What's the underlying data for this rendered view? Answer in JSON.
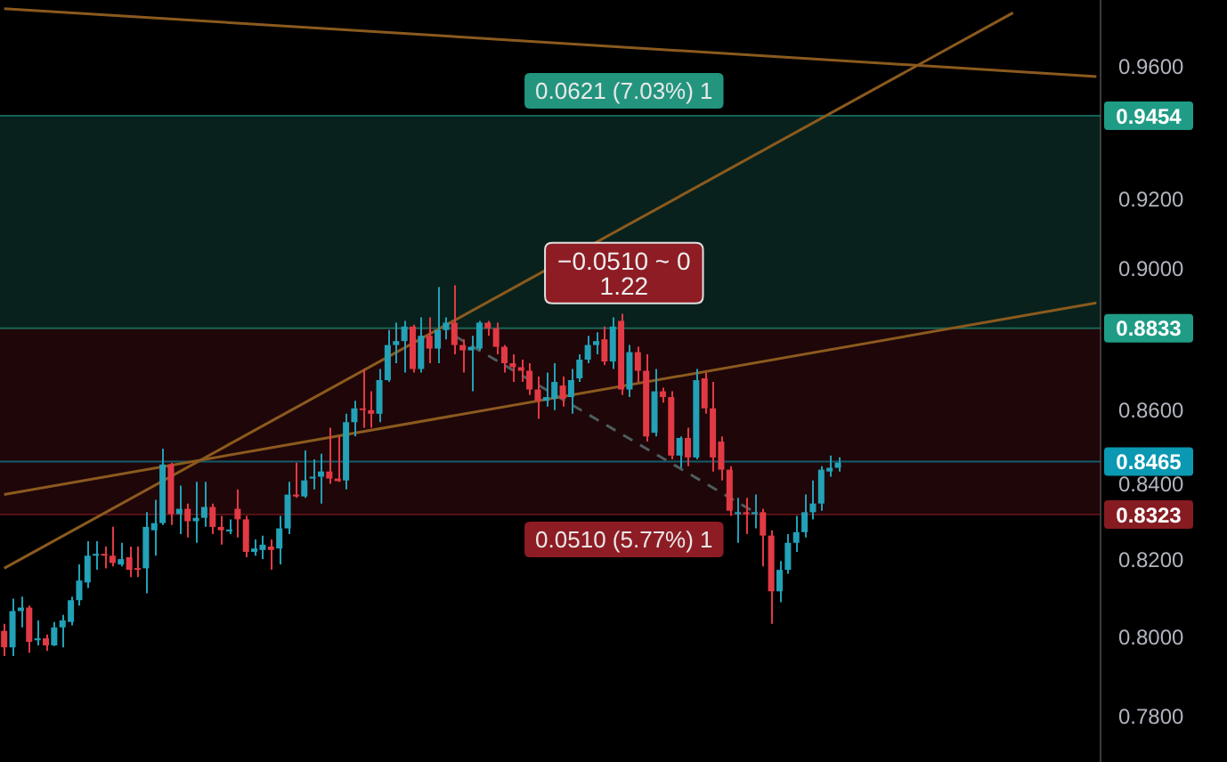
{
  "chart_data": {
    "type": "candlestick",
    "log": true,
    "tick_labels": "y",
    "ylim": [
      0.769,
      0.981
    ],
    "yticks": [
      {
        "value": 0.78,
        "label": "0.7800"
      },
      {
        "value": 0.8,
        "label": "0.8000"
      },
      {
        "value": 0.82,
        "label": "0.8200"
      },
      {
        "value": 0.84,
        "label": "0.8400"
      },
      {
        "value": 0.86,
        "label": "0.8600"
      },
      {
        "value": 0.9,
        "label": "0.9000"
      },
      {
        "value": 0.92,
        "label": "0.9200"
      },
      {
        "value": 0.96,
        "label": "0.9600"
      }
    ],
    "categories": [
      null,
      null,
      null,
      null,
      null,
      null,
      null,
      null,
      null,
      null,
      null,
      null,
      null,
      null,
      null,
      null,
      null,
      null,
      null,
      null,
      null,
      null,
      null,
      null,
      null,
      null,
      null,
      null,
      null,
      null,
      null,
      null,
      null,
      null,
      null,
      null,
      null,
      null,
      null,
      null,
      null,
      null,
      null,
      null,
      null,
      null,
      null,
      null,
      null,
      null,
      null,
      null,
      null,
      null,
      null,
      null,
      null,
      null,
      null,
      null,
      null,
      null,
      null,
      null,
      null,
      null,
      null,
      null,
      null,
      null,
      null,
      null,
      null,
      null,
      null,
      null,
      null,
      null,
      null,
      null,
      null,
      null,
      null,
      null,
      null,
      null,
      null,
      null,
      null,
      null,
      null,
      null,
      null,
      null,
      null,
      null,
      null,
      null,
      null,
      null,
      null,
      null,
      null,
      null,
      null,
      null,
      null,
      null,
      null,
      null,
      null,
      null,
      null,
      null,
      null,
      null,
      null,
      null,
      null,
      null,
      null,
      null,
      null,
      null,
      null,
      null,
      null,
      null,
      null,
      null,
      null,
      null
    ],
    "ohlc": [
      [
        0.8019,
        0.8037,
        0.7955,
        0.7977
      ],
      [
        0.7977,
        0.8102,
        0.7955,
        0.807
      ],
      [
        0.807,
        0.8107,
        0.8028,
        0.8079
      ],
      [
        0.8079,
        0.8084,
        0.7963,
        0.7991
      ],
      [
        0.7995,
        0.8046,
        0.7982,
        0.8
      ],
      [
        0.8,
        0.801,
        0.7968,
        0.7982
      ],
      [
        0.7982,
        0.8042,
        0.798,
        0.8028
      ],
      [
        0.8028,
        0.806,
        0.7977,
        0.8046
      ],
      [
        0.8042,
        0.8107,
        0.8033,
        0.8098
      ],
      [
        0.8098,
        0.8191,
        0.8084,
        0.8149
      ],
      [
        0.8144,
        0.8252,
        0.813,
        0.8214
      ],
      [
        0.8214,
        0.8252,
        0.8177,
        0.8219
      ],
      [
        0.8219,
        0.8238,
        0.8181,
        0.8214
      ],
      [
        0.8214,
        0.829,
        0.8186,
        0.8195
      ],
      [
        0.8191,
        0.8248,
        0.8186,
        0.8205
      ],
      [
        0.821,
        0.8238,
        0.8158,
        0.8177
      ],
      [
        0.8181,
        0.8238,
        0.8158,
        0.8177
      ],
      [
        0.8181,
        0.8329,
        0.8116,
        0.829
      ],
      [
        0.8281,
        0.8362,
        0.8214,
        0.83
      ],
      [
        0.83,
        0.85,
        0.8295,
        0.8457
      ],
      [
        0.8457,
        0.8462,
        0.8295,
        0.8324
      ],
      [
        0.8324,
        0.84,
        0.8271,
        0.8338
      ],
      [
        0.8338,
        0.8352,
        0.8262,
        0.8305
      ],
      [
        0.8305,
        0.841,
        0.8248,
        0.8314
      ],
      [
        0.8314,
        0.841,
        0.829,
        0.8343
      ],
      [
        0.8343,
        0.8352,
        0.8271,
        0.829
      ],
      [
        0.829,
        0.8319,
        0.8243,
        0.8281
      ],
      [
        0.8278,
        0.831,
        0.8271,
        0.8283
      ],
      [
        0.8338,
        0.839,
        0.8262,
        0.831
      ],
      [
        0.831,
        0.8319,
        0.821,
        0.8224
      ],
      [
        0.8224,
        0.8257,
        0.8214,
        0.8233
      ],
      [
        0.8229,
        0.8267,
        0.8205,
        0.8243
      ],
      [
        0.8238,
        0.8257,
        0.8177,
        0.8229
      ],
      [
        0.8233,
        0.8319,
        0.8191,
        0.8286
      ],
      [
        0.8286,
        0.841,
        0.8271,
        0.8376
      ],
      [
        0.8376,
        0.8462,
        0.8367,
        0.8371
      ],
      [
        0.8371,
        0.8495,
        0.8367,
        0.8414
      ],
      [
        0.8419,
        0.8471,
        0.839,
        0.8424
      ],
      [
        0.8424,
        0.8486,
        0.8352,
        0.8438
      ],
      [
        0.8438,
        0.8557,
        0.8405,
        0.8419
      ],
      [
        0.8419,
        0.8533,
        0.841,
        0.8412
      ],
      [
        0.8414,
        0.8595,
        0.839,
        0.8572
      ],
      [
        0.8572,
        0.8631,
        0.8533,
        0.861
      ],
      [
        0.861,
        0.8719,
        0.8557,
        0.8605
      ],
      [
        0.8605,
        0.8657,
        0.8557,
        0.8595
      ],
      [
        0.8595,
        0.8719,
        0.8572,
        0.8688
      ],
      [
        0.8688,
        0.8828,
        0.8683,
        0.8786
      ],
      [
        0.8786,
        0.8849,
        0.8735,
        0.8797
      ],
      [
        0.8797,
        0.8854,
        0.8709,
        0.8838
      ],
      [
        0.8838,
        0.8843,
        0.8709,
        0.8719
      ],
      [
        0.8719,
        0.8864,
        0.8709,
        0.8812
      ],
      [
        0.8812,
        0.8864,
        0.8735,
        0.8776
      ],
      [
        0.8776,
        0.895,
        0.8735,
        0.8828
      ],
      [
        0.8828,
        0.8864,
        0.8802,
        0.8849
      ],
      [
        0.8849,
        0.8955,
        0.876,
        0.8786
      ],
      [
        0.8786,
        0.8802,
        0.8709,
        0.8771
      ],
      [
        0.8771,
        0.8812,
        0.8657,
        0.8781
      ],
      [
        0.8776,
        0.8854,
        0.8771,
        0.8849
      ],
      [
        0.8849,
        0.8854,
        0.8812,
        0.8833
      ],
      [
        0.8833,
        0.8849,
        0.876,
        0.8781
      ],
      [
        0.8781,
        0.8786,
        0.8709,
        0.8735
      ],
      [
        0.8735,
        0.876,
        0.8683,
        0.8724
      ],
      [
        0.8724,
        0.8745,
        0.8683,
        0.8714
      ],
      [
        0.8714,
        0.8735,
        0.8647,
        0.8662
      ],
      [
        0.8662,
        0.8698,
        0.8581,
        0.8631
      ],
      [
        0.8631,
        0.8709,
        0.8615,
        0.8641
      ],
      [
        0.8636,
        0.8735,
        0.8605,
        0.8683
      ],
      [
        0.8673,
        0.8698,
        0.8615,
        0.8636
      ],
      [
        0.8641,
        0.8719,
        0.8595,
        0.8688
      ],
      [
        0.8693,
        0.876,
        0.8683,
        0.8745
      ],
      [
        0.8745,
        0.8812,
        0.8735,
        0.8786
      ],
      [
        0.8786,
        0.8822,
        0.876,
        0.8797
      ],
      [
        0.8802,
        0.8838,
        0.873,
        0.874
      ],
      [
        0.874,
        0.8864,
        0.8719,
        0.8838
      ],
      [
        0.8854,
        0.8874,
        0.8647,
        0.8662
      ],
      [
        0.8662,
        0.8786,
        0.8641,
        0.8766
      ],
      [
        0.8766,
        0.8781,
        0.8683,
        0.8714
      ],
      [
        0.8714,
        0.876,
        0.8519,
        0.8533
      ],
      [
        0.8543,
        0.8719,
        0.8533,
        0.8657
      ],
      [
        0.8657,
        0.8667,
        0.8626,
        0.8641
      ],
      [
        0.8641,
        0.8657,
        0.8471,
        0.8481
      ],
      [
        0.8481,
        0.8533,
        0.8448,
        0.8529
      ],
      [
        0.8529,
        0.8557,
        0.8452,
        0.8476
      ],
      [
        0.8476,
        0.8719,
        0.8471,
        0.8688
      ],
      [
        0.8693,
        0.8709,
        0.8595,
        0.861
      ],
      [
        0.861,
        0.8683,
        0.8438,
        0.8476
      ],
      [
        0.8519,
        0.8533,
        0.8414,
        0.8443
      ],
      [
        0.8443,
        0.8452,
        0.8319,
        0.8333
      ],
      [
        0.8324,
        0.8367,
        0.8248,
        0.8329
      ],
      [
        0.8329,
        0.8367,
        0.8271,
        0.8324
      ],
      [
        0.8324,
        0.8376,
        0.8286,
        0.8329
      ],
      [
        0.8329,
        0.8338,
        0.8186,
        0.8267
      ],
      [
        0.8267,
        0.8281,
        0.8037,
        0.8121
      ],
      [
        0.8121,
        0.82,
        0.8093,
        0.8177
      ],
      [
        0.8177,
        0.8271,
        0.8167,
        0.8248
      ],
      [
        0.8248,
        0.8319,
        0.8224,
        0.8276
      ],
      [
        0.8276,
        0.8376,
        0.8262,
        0.8329
      ],
      [
        0.8329,
        0.8414,
        0.831,
        0.8352
      ],
      [
        0.8352,
        0.8452,
        0.8333,
        0.8443
      ],
      [
        0.8438,
        0.8481,
        0.8424,
        0.8448
      ],
      [
        0.8448,
        0.8476,
        0.8438,
        0.8462
      ],
      null,
      null,
      null,
      null,
      null,
      null,
      null,
      null,
      null,
      null,
      null,
      null,
      null,
      null,
      null,
      null,
      null,
      null,
      null,
      null,
      null,
      null,
      null,
      null,
      null,
      null,
      null,
      null,
      null,
      null,
      null
    ],
    "colors": [
      "#e23a45",
      "#22a1b7",
      "#22a1b7",
      "#e23a45",
      "#22a1b7",
      "#e23a45",
      "#22a1b7",
      "#22a1b7",
      "#22a1b7",
      "#22a1b7",
      "#22a1b7",
      "#22a1b7",
      "#e23a45",
      "#e23a45",
      "#22a1b7",
      "#e23a45",
      "#e23a45",
      "#22a1b7",
      "#22a1b7",
      "#22a1b7",
      "#e23a45",
      "#22a1b7",
      "#e23a45",
      "#22a1b7",
      "#22a1b7",
      "#e23a45",
      "#e23a45",
      "#22a1b7",
      "#e23a45",
      "#e23a45",
      "#22a1b7",
      "#22a1b7",
      "#e23a45",
      "#22a1b7",
      "#22a1b7",
      "#e23a45",
      "#22a1b7",
      "#22a1b7",
      "#22a1b7",
      "#e23a45",
      "#e23a45",
      "#22a1b7",
      "#22a1b7",
      "#e23a45",
      "#e23a45",
      "#22a1b7",
      "#22a1b7",
      "#22a1b7",
      "#22a1b7",
      "#e23a45",
      "#22a1b7",
      "#e23a45",
      "#22a1b7",
      "#22a1b7",
      "#e23a45",
      "#e23a45",
      "#22a1b7",
      "#22a1b7",
      "#e23a45",
      "#e23a45",
      "#e23a45",
      "#e23a45",
      "#e23a45",
      "#e23a45",
      "#e23a45",
      "#22a1b7",
      "#22a1b7",
      "#e23a45",
      "#22a1b7",
      "#22a1b7",
      "#22a1b7",
      "#22a1b7",
      "#e23a45",
      "#22a1b7",
      "#e23a45",
      "#22a1b7",
      "#e23a45",
      "#e23a45",
      "#22a1b7",
      "#e23a45",
      "#e23a45",
      "#22a1b7",
      "#e23a45",
      "#22a1b7",
      "#e23a45",
      "#e23a45",
      "#e23a45",
      "#e23a45",
      "#22a1b7",
      "#e23a45",
      "#22a1b7",
      "#e23a45",
      "#e23a45",
      "#22a1b7",
      "#22a1b7",
      "#22a1b7",
      "#22a1b7",
      "#22a1b7",
      "#22a1b7",
      "#22a1b7",
      "#22a1b7",
      null,
      null,
      null,
      null,
      null,
      null,
      null,
      null,
      null,
      null,
      null,
      null,
      null,
      null,
      null,
      null,
      null,
      null,
      null,
      null,
      null,
      null,
      null,
      null,
      null,
      null,
      null,
      null,
      null,
      null,
      null
    ],
    "series": [
      {
        "type": "line",
        "color": "#8b5a1e",
        "line_style": "solid",
        "values": [
          0.8181,
          null,
          null,
          null,
          null,
          null,
          null,
          null,
          null,
          null,
          null,
          null,
          null,
          null,
          null,
          null,
          null,
          null,
          null,
          null,
          null,
          null,
          null,
          null,
          null,
          null,
          null,
          null,
          null,
          null,
          null,
          null,
          null,
          null,
          null,
          null,
          null,
          null,
          null,
          null,
          null,
          null,
          null,
          null,
          null,
          null,
          null,
          null,
          null,
          null,
          null,
          null,
          null,
          null,
          null,
          null,
          null,
          null,
          null,
          null,
          null,
          null,
          null,
          null,
          null,
          null,
          null,
          null,
          null,
          null,
          null,
          null,
          null,
          null,
          null,
          null,
          null,
          null,
          null,
          null,
          null,
          null,
          null,
          null,
          null,
          null,
          null,
          null,
          null,
          null,
          null,
          null,
          null,
          null,
          null,
          null,
          null,
          null,
          null,
          null,
          null,
          null,
          null,
          null,
          null,
          null,
          null,
          null,
          null,
          null,
          null,
          null,
          null,
          null,
          null,
          null,
          null,
          null,
          null,
          null,
          null,
          0.977,
          null,
          null,
          null,
          null,
          null,
          null,
          null,
          null,
          null,
          null
        ]
      },
      {
        "type": "line",
        "color": "#8b5a1e",
        "line_style": "solid",
        "values": [
          0.8376,
          null,
          null,
          null,
          null,
          null,
          null,
          null,
          null,
          null,
          null,
          null,
          null,
          null,
          null,
          null,
          null,
          null,
          null,
          null,
          null,
          null,
          null,
          null,
          null,
          null,
          null,
          null,
          null,
          null,
          null,
          null,
          null,
          null,
          null,
          null,
          null,
          null,
          null,
          null,
          null,
          null,
          null,
          null,
          null,
          null,
          null,
          null,
          null,
          null,
          null,
          null,
          null,
          null,
          null,
          null,
          null,
          null,
          null,
          null,
          null,
          null,
          null,
          null,
          null,
          null,
          null,
          null,
          null,
          null,
          null,
          null,
          null,
          null,
          null,
          null,
          null,
          null,
          null,
          null,
          null,
          null,
          null,
          null,
          null,
          null,
          null,
          null,
          null,
          null,
          null,
          null,
          null,
          null,
          null,
          null,
          null,
          null,
          null,
          null,
          null,
          null,
          null,
          null,
          null,
          null,
          null,
          null,
          null,
          null,
          null,
          null,
          null,
          null,
          null,
          null,
          null,
          null,
          null,
          null,
          null,
          null,
          null,
          null,
          null,
          null,
          null,
          null,
          null,
          null,
          null,
          0.8905
        ]
      },
      {
        "type": "line",
        "color": "#8b5a1e",
        "line_style": "solid",
        "values": [
          0.9783,
          null,
          null,
          null,
          null,
          null,
          null,
          null,
          null,
          null,
          null,
          null,
          null,
          null,
          null,
          null,
          null,
          null,
          null,
          null,
          null,
          null,
          null,
          null,
          null,
          null,
          null,
          null,
          null,
          null,
          null,
          null,
          null,
          null,
          null,
          null,
          null,
          null,
          null,
          null,
          null,
          null,
          null,
          null,
          null,
          null,
          null,
          null,
          null,
          null,
          null,
          null,
          null,
          null,
          null,
          null,
          null,
          null,
          null,
          null,
          null,
          null,
          null,
          null,
          null,
          null,
          null,
          null,
          null,
          null,
          null,
          null,
          null,
          null,
          null,
          null,
          null,
          null,
          null,
          null,
          null,
          null,
          null,
          null,
          null,
          null,
          null,
          null,
          null,
          null,
          null,
          null,
          null,
          null,
          null,
          null,
          null,
          null,
          null,
          null,
          null,
          null,
          null,
          null,
          null,
          null,
          null,
          null,
          null,
          null,
          null,
          null,
          null,
          null,
          null,
          null,
          null,
          null,
          null,
          null,
          null,
          null,
          null,
          null,
          null,
          null,
          null,
          null,
          null,
          null,
          null,
          0.9573
        ]
      },
      {
        "type": "line",
        "color": "#4d5e5e",
        "line_style": "dashed",
        "values": [
          null,
          null,
          null,
          null,
          null,
          null,
          null,
          null,
          null,
          null,
          null,
          null,
          null,
          null,
          null,
          null,
          null,
          null,
          null,
          null,
          null,
          null,
          null,
          null,
          null,
          null,
          null,
          null,
          null,
          null,
          null,
          null,
          null,
          null,
          null,
          null,
          null,
          null,
          null,
          null,
          null,
          null,
          null,
          null,
          null,
          null,
          null,
          null,
          null,
          null,
          null,
          null,
          null,
          null,
          0.8812,
          null,
          null,
          null,
          null,
          null,
          null,
          null,
          null,
          null,
          null,
          null,
          null,
          null,
          null,
          null,
          null,
          null,
          null,
          null,
          null,
          null,
          null,
          null,
          null,
          null,
          null,
          null,
          null,
          null,
          null,
          null,
          null,
          null,
          null,
          null,
          0.8329,
          null,
          null,
          null,
          null,
          null,
          null,
          null,
          null,
          null,
          null,
          null,
          null,
          null,
          null,
          null,
          null,
          null,
          null,
          null,
          null,
          null,
          null,
          null,
          null,
          null,
          null,
          null,
          null,
          null,
          null,
          null,
          null,
          null,
          null,
          null,
          null,
          null,
          null,
          null,
          null,
          null
        ]
      }
    ],
    "bands": [
      {
        "axis": "y",
        "from": 0.8833,
        "to": 0.9454,
        "label": "0.0621 (7.03%) 1",
        "color": "#23957f"
      },
      {
        "axis": "y",
        "from": 0.8323,
        "to": 0.8833,
        "label": "0.0510 (5.77%) 1",
        "color": "#8e1c24"
      }
    ],
    "ref_lines": [
      {
        "axis": "y",
        "value": 0.9454,
        "label": "0.9454",
        "color": "#1f9c86"
      },
      {
        "axis": "y",
        "value": 0.8833,
        "label": "0.8833",
        "color": "#1f9c86"
      },
      {
        "axis": "y",
        "value": 0.8465,
        "label": "0.8465",
        "color": "#0a98b2"
      },
      {
        "axis": "y",
        "value": 0.8323,
        "label": "0.8323",
        "color": "#861b22"
      }
    ],
    "annotations": [
      "−0.0510 ~ 0",
      "1.22"
    ]
  }
}
